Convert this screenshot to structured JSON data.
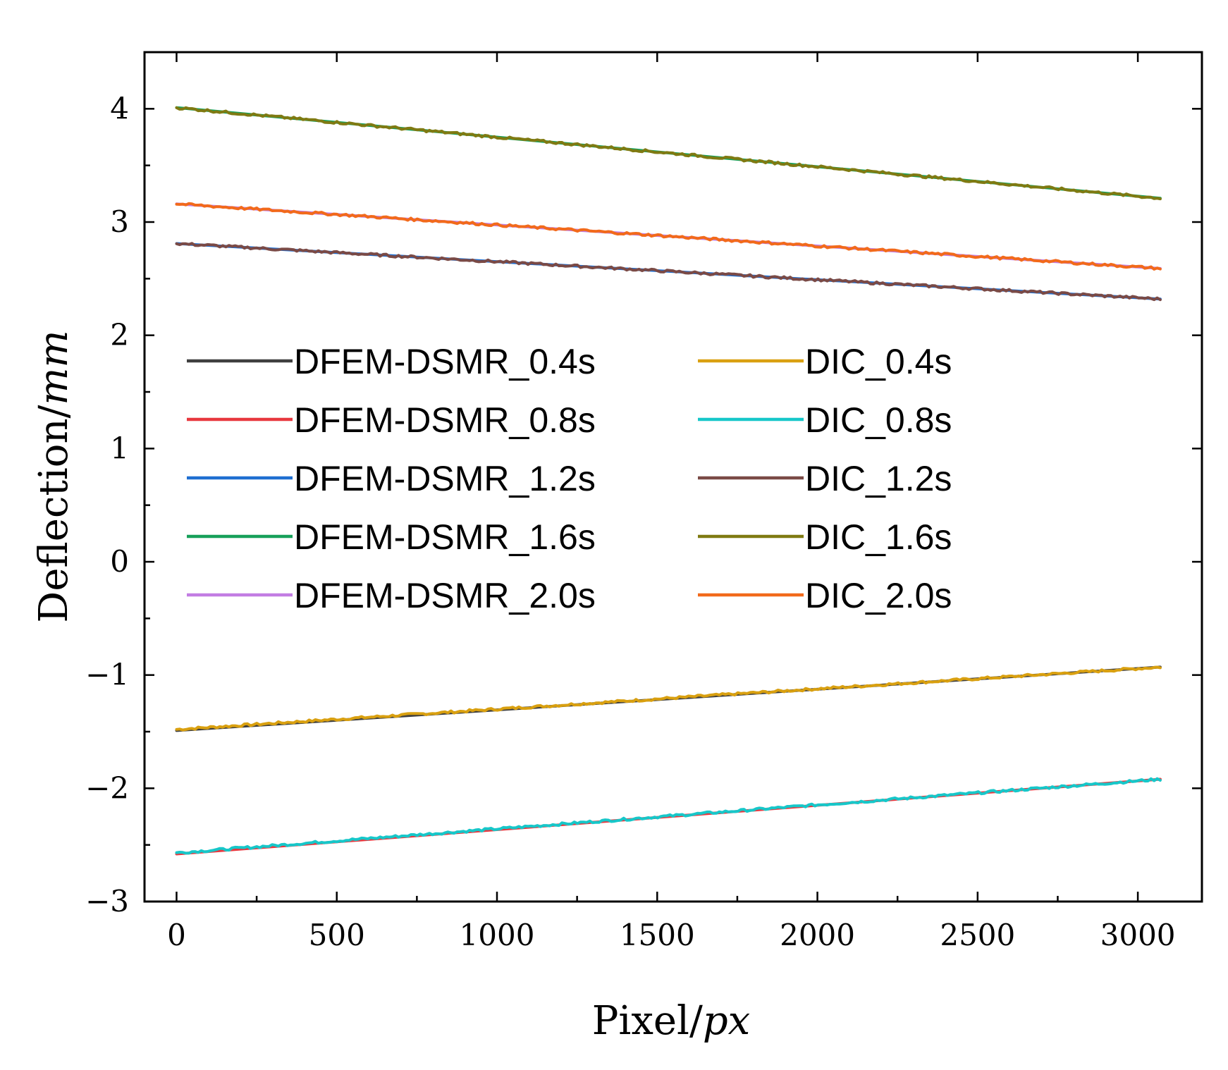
{
  "chart_data": {
    "type": "line",
    "title": "",
    "xlabel": "Pixel/",
    "xlabel_italic": "px",
    "ylabel": "Deflection/",
    "ylabel_italic": "mm",
    "xlim": [
      -100,
      3200
    ],
    "ylim": [
      -3,
      4.5
    ],
    "xticks": [
      0,
      500,
      1000,
      1500,
      2000,
      2500,
      3000
    ],
    "xtick_labels": [
      "0",
      "500",
      "1000",
      "1500",
      "2000",
      "2500",
      "3000"
    ],
    "yticks": [
      -3,
      -2,
      -1,
      0,
      1,
      2,
      3,
      4
    ],
    "ytick_labels": [
      "−3",
      "−2",
      "−1",
      "0",
      "1",
      "2",
      "3",
      "4"
    ],
    "legend_position": "center-left",
    "series": [
      {
        "name": "DFEM-DSMR_0.4s",
        "color": "#3f3f3f",
        "x": [
          0,
          3070
        ],
        "y": [
          -1.49,
          -0.93
        ],
        "noisy": false
      },
      {
        "name": "DFEM-DSMR_0.8s",
        "color": "#e8383f",
        "x": [
          0,
          3070
        ],
        "y": [
          -2.58,
          -1.92
        ],
        "noisy": false
      },
      {
        "name": "DFEM-DSMR_1.2s",
        "color": "#1f6fd1",
        "x": [
          0,
          3070
        ],
        "y": [
          2.81,
          2.32
        ],
        "noisy": false
      },
      {
        "name": "DFEM-DSMR_1.6s",
        "color": "#17a05a",
        "x": [
          0,
          3070
        ],
        "y": [
          4.01,
          3.21
        ],
        "noisy": false
      },
      {
        "name": "DFEM-DSMR_2.0s",
        "color": "#c27de3",
        "x": [
          0,
          3070
        ],
        "y": [
          3.16,
          2.59
        ],
        "noisy": false
      },
      {
        "name": "DIC_0.4s",
        "color": "#d9a010",
        "x": [
          0,
          3070
        ],
        "y": [
          -1.48,
          -0.93
        ],
        "noisy": true
      },
      {
        "name": "DIC_0.8s",
        "color": "#17c7c9",
        "x": [
          0,
          3070
        ],
        "y": [
          -2.57,
          -1.92
        ],
        "noisy": true
      },
      {
        "name": "DIC_1.2s",
        "color": "#7a4a46",
        "x": [
          0,
          3070
        ],
        "y": [
          2.81,
          2.32
        ],
        "noisy": true
      },
      {
        "name": "DIC_1.6s",
        "color": "#7f7a12",
        "x": [
          0,
          3070
        ],
        "y": [
          4.01,
          3.21
        ],
        "noisy": true
      },
      {
        "name": "DIC_2.0s",
        "color": "#f26a1b",
        "x": [
          0,
          3070
        ],
        "y": [
          3.16,
          2.59
        ],
        "noisy": true
      }
    ]
  }
}
